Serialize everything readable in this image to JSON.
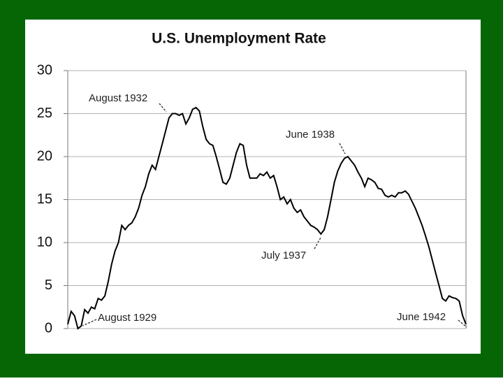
{
  "chart_data": {
    "type": "line",
    "title": "U.S. Unemployment Rate",
    "series": [
      {
        "color": "#000000",
        "values": [
          0.5,
          2,
          1.5,
          0,
          0.3,
          2.2,
          1.8,
          2.5,
          2.3,
          3.5,
          3.3,
          3.8,
          5.5,
          7.5,
          9,
          10,
          12,
          11.5,
          12,
          12.3,
          13,
          14,
          15.5,
          16.5,
          18,
          19,
          18.5,
          20,
          21.5,
          23,
          24.5,
          25,
          25,
          24.8,
          25,
          23.8,
          24.5,
          25.5,
          25.7,
          25.3,
          23.5,
          22,
          21.5,
          21.3,
          20,
          18.5,
          17,
          16.8,
          17.5,
          19,
          20.5,
          21.5,
          21.3,
          19,
          17.5,
          17.5,
          17.5,
          18,
          17.8,
          18.2,
          17.5,
          17.8,
          16.5,
          15,
          15.3,
          14.5,
          15,
          14,
          13.5,
          13.8,
          13,
          12.5,
          12,
          11.8,
          11.5,
          11,
          11.5,
          13,
          15,
          17,
          18.3,
          19.2,
          19.8,
          20,
          19.5,
          19,
          18.2,
          17.5,
          16.5,
          17.5,
          17.3,
          17,
          16.3,
          16.2,
          15.5,
          15.3,
          15.5,
          15.3,
          15.8,
          15.8,
          16,
          15.6,
          14.8,
          14,
          13,
          12,
          10.8,
          9.5,
          8,
          6.5,
          5,
          3.5,
          3.2,
          3.8,
          3.6,
          3.5,
          3.2,
          1.5,
          0.5
        ]
      }
    ],
    "ylim": [
      0,
      30
    ],
    "yticks": [
      0,
      5,
      10,
      15,
      20,
      25,
      30
    ],
    "grid": true,
    "annotations": [
      "August 1932",
      "June 1938",
      "July 1937",
      "August 1929",
      "June 1942"
    ]
  }
}
